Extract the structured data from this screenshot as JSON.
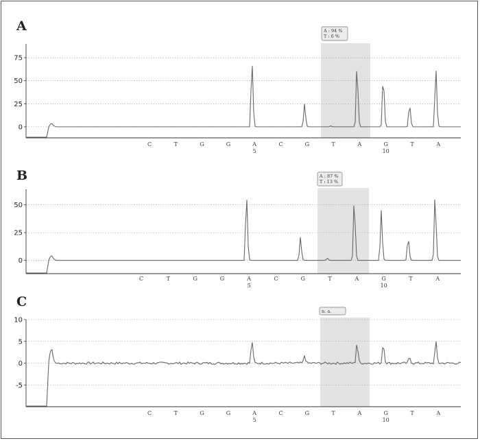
{
  "chart_data": [
    {
      "type": "line",
      "panel_label": "A",
      "yticks": [
        0,
        25,
        50,
        75
      ],
      "ylim": [
        -12,
        90
      ],
      "bases": [
        "C",
        "T",
        "G",
        "G",
        "A",
        "C",
        "G",
        "T",
        "A",
        "G",
        "T",
        "A"
      ],
      "position_labels": [
        {
          "index": 4,
          "text": "5"
        },
        {
          "index": 9,
          "text": "10"
        }
      ],
      "peak_heights": [
        0,
        0,
        0,
        0,
        75,
        0,
        25,
        1,
        65,
        55,
        25,
        67
      ],
      "highlight_base_index": 7,
      "annotation": [
        "A : 94 %",
        "T : 6 %"
      ]
    },
    {
      "type": "line",
      "panel_label": "B",
      "yticks": [
        0,
        25,
        50
      ],
      "ylim": [
        -12,
        64
      ],
      "bases": [
        "C",
        "T",
        "G",
        "G",
        "A",
        "C",
        "G",
        "T",
        "A",
        "G",
        "T",
        "A"
      ],
      "position_labels": [
        {
          "index": 4,
          "text": "5"
        },
        {
          "index": 9,
          "text": "10"
        }
      ],
      "peak_heights": [
        0,
        0,
        0,
        0,
        62,
        0,
        21,
        2,
        53,
        46,
        21,
        57
      ],
      "highlight_base_index": 7,
      "annotation": [
        "A : 87 %",
        "T : 13 %"
      ]
    },
    {
      "type": "line",
      "panel_label": "C",
      "yticks": [
        -5,
        0,
        5,
        10
      ],
      "ylim": [
        -10,
        10
      ],
      "bases": [
        "C",
        "T",
        "G",
        "G",
        "A",
        "C",
        "G",
        "T",
        "A",
        "G",
        "T",
        "A"
      ],
      "position_labels": [
        {
          "index": 4,
          "text": "5"
        },
        {
          "index": 9,
          "text": "10"
        }
      ],
      "peak_heights": [
        0,
        0,
        0,
        0,
        5.5,
        0,
        1.8,
        0,
        4.6,
        4.6,
        1.4,
        5.2
      ],
      "highlight_base_index": 7,
      "annotation": [
        "n. a."
      ]
    }
  ]
}
